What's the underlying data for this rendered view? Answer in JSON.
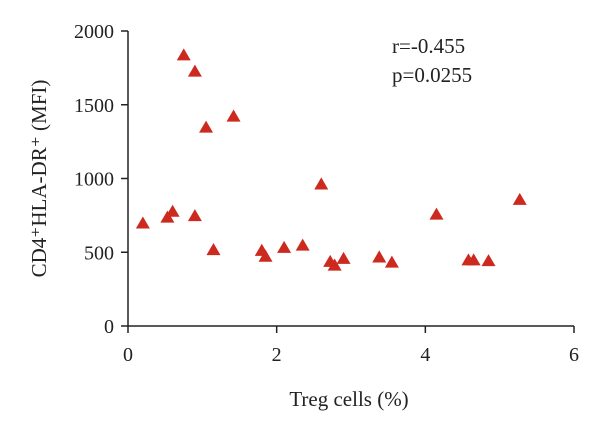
{
  "chart_data": {
    "type": "scatter",
    "xlabel": "Treg cells (%)",
    "ylabel": "CD4⁺HLA-DR⁺ (MFI)",
    "xlim": [
      0,
      6
    ],
    "ylim": [
      0,
      2000
    ],
    "xticks": [
      "0",
      "2",
      "4",
      "6"
    ],
    "yticks": [
      "0",
      "500",
      "1000",
      "1500",
      "2000"
    ],
    "grid": false,
    "marker": "triangle",
    "marker_color": "#cc2a1f",
    "annotations": [
      "r=-0.455",
      "p=0.0255"
    ],
    "points": [
      {
        "x": 0.2,
        "y": 695
      },
      {
        "x": 0.53,
        "y": 735
      },
      {
        "x": 0.6,
        "y": 775
      },
      {
        "x": 0.75,
        "y": 1835
      },
      {
        "x": 0.9,
        "y": 1725
      },
      {
        "x": 0.9,
        "y": 745
      },
      {
        "x": 1.05,
        "y": 1345
      },
      {
        "x": 1.15,
        "y": 515
      },
      {
        "x": 1.42,
        "y": 1420
      },
      {
        "x": 1.8,
        "y": 510
      },
      {
        "x": 1.85,
        "y": 470
      },
      {
        "x": 2.1,
        "y": 530
      },
      {
        "x": 2.35,
        "y": 545
      },
      {
        "x": 2.6,
        "y": 960
      },
      {
        "x": 2.72,
        "y": 435
      },
      {
        "x": 2.78,
        "y": 410
      },
      {
        "x": 2.9,
        "y": 455
      },
      {
        "x": 3.38,
        "y": 465
      },
      {
        "x": 3.55,
        "y": 430
      },
      {
        "x": 4.15,
        "y": 755
      },
      {
        "x": 4.58,
        "y": 445
      },
      {
        "x": 4.65,
        "y": 445
      },
      {
        "x": 4.85,
        "y": 440
      },
      {
        "x": 5.27,
        "y": 855
      }
    ]
  }
}
